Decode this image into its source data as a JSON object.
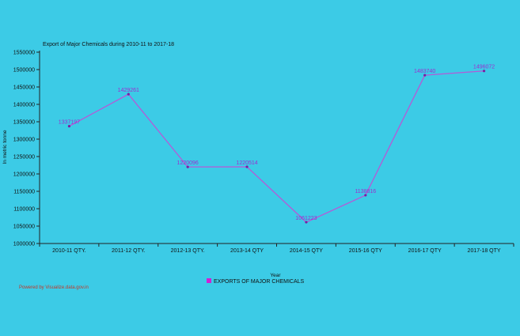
{
  "chart_data": {
    "type": "line",
    "title": "Export of Major Chemicals during 2010-11 to 2017-18",
    "xlabel": "Year",
    "ylabel": "In metric tonne",
    "categories": [
      "2010-11 QTY.",
      "2011-12 QTY.",
      "2012-13 QTY.",
      "2013-14 QTY",
      "2014-15 QTY",
      "2015-16 QTY",
      "2016-17 QTY",
      "2017-18 QTY"
    ],
    "series": [
      {
        "name": "EXPORTS OF MAJOR CHEMICALS",
        "values": [
          1337197,
          1429261,
          1220096,
          1220514,
          1061223,
          1138816,
          1483740,
          1496072
        ]
      }
    ],
    "ylim": [
      1000000,
      1550000
    ],
    "yticks": [
      1000000,
      1050000,
      1100000,
      1150000,
      1200000,
      1250000,
      1300000,
      1350000,
      1400000,
      1450000,
      1500000,
      1550000
    ],
    "grid": false,
    "legend_position": "bottom-center"
  },
  "colors": {
    "background": "#3ccbe6",
    "series_line": "#b45ad8",
    "series_marker": "#7b1fa2",
    "data_label": "#9b2fcf",
    "legend_swatch": "#d11fd6",
    "credit_text": "#c0392b"
  },
  "footer": {
    "credit": "Powered by Visualize.data.gov.in"
  }
}
